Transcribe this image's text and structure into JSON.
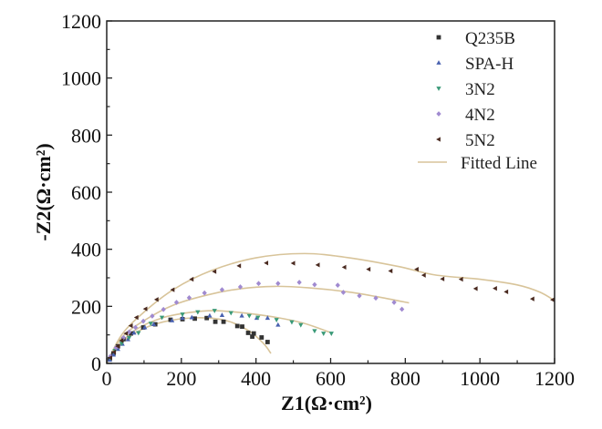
{
  "chart_data": {
    "type": "scatter",
    "title": "",
    "xlabel": "Z1(Ω·cm²)",
    "ylabel": "-Z2(Ω·cm²)",
    "xlim": [
      0,
      1200
    ],
    "ylim": [
      0,
      1200
    ],
    "xticks": [
      0,
      200,
      400,
      600,
      800,
      1000,
      1200
    ],
    "yticks": [
      0,
      200,
      400,
      600,
      800,
      1000,
      1200
    ],
    "grid": false,
    "legend_position": "top-right",
    "series": [
      {
        "name": "Q235B",
        "marker": "square",
        "color": "#333333",
        "points": [
          [
            8,
            15
          ],
          [
            18,
            35
          ],
          [
            30,
            60
          ],
          [
            45,
            85
          ],
          [
            65,
            105
          ],
          [
            98,
            126
          ],
          [
            130,
            137
          ],
          [
            171,
            153
          ],
          [
            203,
            155
          ],
          [
            236,
            157
          ],
          [
            268,
            159
          ],
          [
            291,
            146
          ],
          [
            313,
            146
          ],
          [
            350,
            131
          ],
          [
            363,
            129
          ],
          [
            379,
            107
          ],
          [
            394,
            105
          ],
          [
            390,
            94
          ],
          [
            415,
            91
          ],
          [
            431,
            75
          ]
        ]
      },
      {
        "name": "SPA-H",
        "marker": "triangle-up",
        "color": "#4a62b0",
        "points": [
          [
            8,
            12
          ],
          [
            18,
            30
          ],
          [
            30,
            50
          ],
          [
            42,
            68
          ],
          [
            57,
            84
          ],
          [
            73,
            107
          ],
          [
            102,
            126
          ],
          [
            126,
            137
          ],
          [
            175,
            150
          ],
          [
            203,
            159
          ],
          [
            228,
            161
          ],
          [
            276,
            167
          ],
          [
            309,
            169
          ],
          [
            362,
            167
          ],
          [
            402,
            159
          ],
          [
            431,
            159
          ],
          [
            459,
            135
          ]
        ]
      },
      {
        "name": "3N2",
        "marker": "triangle-down",
        "color": "#3a9a78",
        "points": [
          [
            10,
            20
          ],
          [
            22,
            45
          ],
          [
            40,
            70
          ],
          [
            60,
            90
          ],
          [
            85,
            107
          ],
          [
            118,
            140
          ],
          [
            148,
            161
          ],
          [
            203,
            172
          ],
          [
            244,
            180
          ],
          [
            289,
            185
          ],
          [
            333,
            177
          ],
          [
            382,
            167
          ],
          [
            405,
            161
          ],
          [
            455,
            153
          ],
          [
            496,
            145
          ],
          [
            520,
            135
          ],
          [
            557,
            114
          ],
          [
            581,
            105
          ],
          [
            602,
            105
          ]
        ]
      },
      {
        "name": "4N2",
        "marker": "diamond",
        "color": "#a08ad0",
        "points": [
          [
            10,
            25
          ],
          [
            25,
            55
          ],
          [
            45,
            90
          ],
          [
            60,
            110
          ],
          [
            77,
            126
          ],
          [
            98,
            148
          ],
          [
            122,
            166
          ],
          [
            152,
            189
          ],
          [
            187,
            214
          ],
          [
            221,
            230
          ],
          [
            262,
            247
          ],
          [
            309,
            258
          ],
          [
            358,
            268
          ],
          [
            407,
            280
          ],
          [
            459,
            280
          ],
          [
            516,
            284
          ],
          [
            557,
            276
          ],
          [
            619,
            274
          ],
          [
            634,
            249
          ],
          [
            677,
            237
          ],
          [
            721,
            229
          ],
          [
            770,
            214
          ],
          [
            791,
            190
          ]
        ]
      },
      {
        "name": "5N2",
        "marker": "triangle-left",
        "color": "#4a2a20",
        "points": [
          [
            10,
            20
          ],
          [
            20,
            40
          ],
          [
            30,
            60
          ],
          [
            40,
            80
          ],
          [
            52,
            105
          ],
          [
            65,
            132
          ],
          [
            80,
            161
          ],
          [
            104,
            191
          ],
          [
            134,
            224
          ],
          [
            177,
            258
          ],
          [
            228,
            295
          ],
          [
            289,
            322
          ],
          [
            355,
            342
          ],
          [
            428,
            352
          ],
          [
            500,
            351
          ],
          [
            566,
            345
          ],
          [
            637,
            337
          ],
          [
            702,
            330
          ],
          [
            761,
            324
          ],
          [
            831,
            330
          ],
          [
            850,
            309
          ],
          [
            900,
            296
          ],
          [
            950,
            295
          ],
          [
            989,
            262
          ],
          [
            1041,
            263
          ],
          [
            1071,
            251
          ],
          [
            1141,
            226
          ],
          [
            1195,
            223
          ]
        ]
      }
    ],
    "fitted_lines": {
      "name": "Fitted Line",
      "color": "#d8c49a",
      "curves": [
        [
          [
            0,
            0
          ],
          [
            30,
            60
          ],
          [
            80,
            110
          ],
          [
            150,
            145
          ],
          [
            240,
            160
          ],
          [
            320,
            150
          ],
          [
            380,
            115
          ],
          [
            420,
            70
          ],
          [
            440,
            35
          ]
        ],
        [
          [
            0,
            0
          ],
          [
            30,
            60
          ],
          [
            80,
            120
          ],
          [
            150,
            160
          ],
          [
            220,
            178
          ],
          [
            290,
            185
          ],
          [
            380,
            175
          ],
          [
            460,
            160
          ],
          [
            530,
            140
          ],
          [
            600,
            108
          ]
        ],
        [
          [
            0,
            0
          ],
          [
            40,
            90
          ],
          [
            100,
            150
          ],
          [
            180,
            205
          ],
          [
            270,
            240
          ],
          [
            360,
            262
          ],
          [
            450,
            270
          ],
          [
            540,
            265
          ],
          [
            650,
            250
          ],
          [
            740,
            230
          ],
          [
            810,
            212
          ]
        ],
        [
          [
            0,
            0
          ],
          [
            40,
            100
          ],
          [
            100,
            180
          ],
          [
            180,
            260
          ],
          [
            280,
            325
          ],
          [
            400,
            370
          ],
          [
            530,
            385
          ],
          [
            650,
            370
          ],
          [
            780,
            340
          ],
          [
            880,
            310
          ],
          [
            1000,
            295
          ],
          [
            1100,
            275
          ],
          [
            1160,
            250
          ],
          [
            1200,
            220
          ]
        ]
      ]
    }
  }
}
